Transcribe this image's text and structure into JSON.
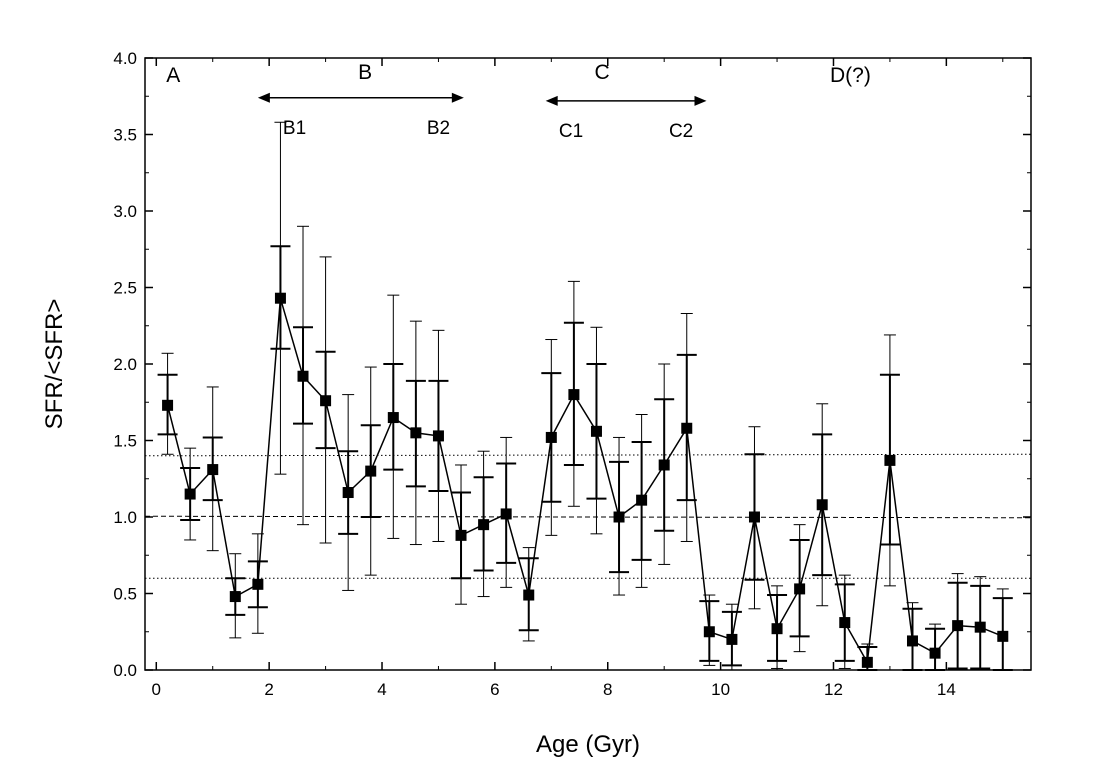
{
  "chart_data": {
    "type": "scatter",
    "title": "",
    "xlabel": "Age (Gyr)",
    "ylabel": "SFR/<SFR>",
    "xlim": [
      -0.2,
      15.5
    ],
    "ylim": [
      0.0,
      4.0
    ],
    "xticks": [
      0,
      2,
      4,
      6,
      8,
      10,
      12,
      14
    ],
    "xtick_labels": [
      "0",
      "2",
      "4",
      "6",
      "8",
      "10",
      "12",
      "14"
    ],
    "yticks": [
      0.0,
      0.5,
      1.0,
      1.5,
      2.0,
      2.5,
      3.0,
      3.5,
      4.0
    ],
    "ytick_labels": [
      "0.0",
      "0.5",
      "1.0",
      "1.5",
      "2.0",
      "2.5",
      "3.0",
      "3.5",
      "4.0"
    ],
    "grid": false,
    "series": [
      {
        "name": "SFR",
        "style": "line-square-marker",
        "color": "#000000",
        "x": [
          0.2,
          0.6,
          1.0,
          1.4,
          1.8,
          2.2,
          2.6,
          3.0,
          3.4,
          3.8,
          4.2,
          4.6,
          5.0,
          5.4,
          5.8,
          6.2,
          6.6,
          7.0,
          7.4,
          7.8,
          8.2,
          8.6,
          9.0,
          9.4,
          9.8,
          10.2,
          10.6,
          11.0,
          11.4,
          11.8,
          12.2,
          12.6,
          13.0,
          13.4,
          13.8,
          14.2,
          14.6,
          15.0
        ],
        "y": [
          1.73,
          1.15,
          1.31,
          0.48,
          0.56,
          2.43,
          1.92,
          1.76,
          1.16,
          1.3,
          1.65,
          1.55,
          1.53,
          0.88,
          0.95,
          1.02,
          0.49,
          1.52,
          1.8,
          1.56,
          1.0,
          1.11,
          1.34,
          1.58,
          0.25,
          0.2,
          1.0,
          0.27,
          0.53,
          1.08,
          0.31,
          0.05,
          1.37,
          0.19,
          0.11,
          0.29,
          0.28,
          0.22
        ],
        "err_inner": [
          [
            1.54,
            1.93
          ],
          [
            0.98,
            1.32
          ],
          [
            1.11,
            1.52
          ],
          [
            0.36,
            0.6
          ],
          [
            0.41,
            0.71
          ],
          [
            2.1,
            2.77
          ],
          [
            1.61,
            2.24
          ],
          [
            1.45,
            2.08
          ],
          [
            0.89,
            1.43
          ],
          [
            1.0,
            1.6
          ],
          [
            1.31,
            2.0
          ],
          [
            1.2,
            1.89
          ],
          [
            1.17,
            1.89
          ],
          [
            0.6,
            1.16
          ],
          [
            0.65,
            1.26
          ],
          [
            0.7,
            1.35
          ],
          [
            0.26,
            0.73
          ],
          [
            1.1,
            1.94
          ],
          [
            1.34,
            2.27
          ],
          [
            1.12,
            2.0
          ],
          [
            0.64,
            1.36
          ],
          [
            0.72,
            1.49
          ],
          [
            0.91,
            1.77
          ],
          [
            1.11,
            2.06
          ],
          [
            0.06,
            0.45
          ],
          [
            0.03,
            0.38
          ],
          [
            0.59,
            1.41
          ],
          [
            0.06,
            0.49
          ],
          [
            0.22,
            0.85
          ],
          [
            0.62,
            1.54
          ],
          [
            0.06,
            0.56
          ],
          [
            0.0,
            0.15
          ],
          [
            0.82,
            1.93
          ],
          [
            0.0,
            0.4
          ],
          [
            0.0,
            0.27
          ],
          [
            0.01,
            0.57
          ],
          [
            0.01,
            0.55
          ],
          [
            0.0,
            0.47
          ]
        ],
        "err_outer": [
          [
            1.41,
            2.07
          ],
          [
            0.85,
            1.45
          ],
          [
            0.78,
            1.85
          ],
          [
            0.21,
            0.76
          ],
          [
            0.24,
            0.89
          ],
          [
            1.28,
            3.58
          ],
          [
            0.95,
            2.9
          ],
          [
            0.83,
            2.7
          ],
          [
            0.52,
            1.8
          ],
          [
            0.62,
            1.98
          ],
          [
            0.86,
            2.45
          ],
          [
            0.82,
            2.28
          ],
          [
            0.84,
            2.22
          ],
          [
            0.43,
            1.34
          ],
          [
            0.48,
            1.43
          ],
          [
            0.54,
            1.52
          ],
          [
            0.19,
            0.8
          ],
          [
            0.88,
            2.16
          ],
          [
            1.07,
            2.54
          ],
          [
            0.89,
            2.24
          ],
          [
            0.49,
            1.52
          ],
          [
            0.54,
            1.67
          ],
          [
            0.69,
            2.0
          ],
          [
            0.84,
            2.33
          ],
          [
            0.03,
            0.49
          ],
          [
            0.0,
            0.43
          ],
          [
            0.4,
            1.59
          ],
          [
            0.01,
            0.55
          ],
          [
            0.12,
            0.95
          ],
          [
            0.42,
            1.74
          ],
          [
            0.01,
            0.62
          ],
          [
            0.0,
            0.17
          ],
          [
            0.55,
            2.19
          ],
          [
            0.0,
            0.44
          ],
          [
            0.0,
            0.3
          ],
          [
            0.0,
            0.63
          ],
          [
            0.0,
            0.61
          ],
          [
            0.0,
            0.53
          ]
        ]
      }
    ],
    "reference_lines": [
      {
        "name": "mean",
        "y": [
          1.005,
          0.995
        ],
        "style": "dashed"
      },
      {
        "name": "upper",
        "y": [
          1.4,
          1.41
        ],
        "style": "dotted"
      },
      {
        "name": "lower",
        "y": [
          0.6,
          0.6
        ],
        "style": "dotted"
      }
    ],
    "annotations": [
      {
        "text": "A",
        "x": 0.3,
        "y": 3.89,
        "size": "large"
      },
      {
        "text": "B",
        "x": 3.7,
        "y": 3.91,
        "size": "large"
      },
      {
        "text": "C",
        "x": 7.9,
        "y": 3.91,
        "size": "large"
      },
      {
        "text": "D(?)",
        "x": 12.3,
        "y": 3.89,
        "size": "large"
      },
      {
        "text": "B1",
        "x": 2.45,
        "y": 3.55,
        "size": "small"
      },
      {
        "text": "B2",
        "x": 5.0,
        "y": 3.55,
        "size": "small"
      },
      {
        "text": "C1",
        "x": 7.35,
        "y": 3.53,
        "size": "small"
      },
      {
        "text": "C2",
        "x": 9.3,
        "y": 3.53,
        "size": "small"
      }
    ],
    "arrows": [
      {
        "name": "B",
        "x1": 1.8,
        "x2": 5.45,
        "y": 3.74
      },
      {
        "name": "C",
        "x1": 6.9,
        "x2": 9.75,
        "y": 3.72
      }
    ]
  }
}
